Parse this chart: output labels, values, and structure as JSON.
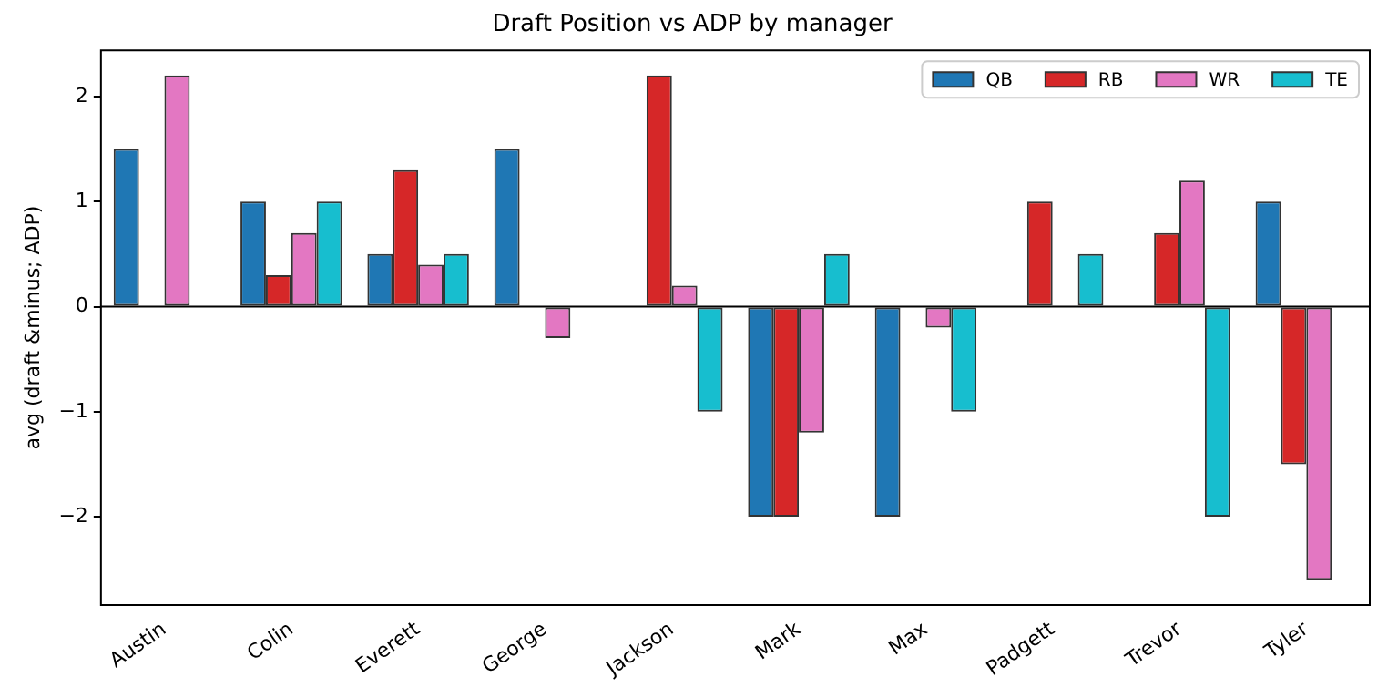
{
  "chart_data": {
    "type": "bar",
    "title": "Draft Position vs ADP by manager",
    "ylabel": "avg (draft &minus; ADP)",
    "categories": [
      "Austin",
      "Colin",
      "Everett",
      "George",
      "Jackson",
      "Mark",
      "Max",
      "Padgett",
      "Trevor",
      "Tyler"
    ],
    "series": [
      {
        "name": "QB",
        "color": "#1f77b4",
        "values": [
          1.5,
          1,
          0.5,
          1.5,
          0,
          -2,
          -2,
          0,
          0,
          1
        ]
      },
      {
        "name": "RB",
        "color": "#d62728",
        "values": [
          0,
          0.3,
          1.3,
          0,
          2.2,
          -2,
          0,
          1,
          0.7,
          -1.5
        ]
      },
      {
        "name": "WR",
        "color": "#e377c2",
        "values": [
          2.2,
          0.7,
          0.4,
          -0.3,
          0.2,
          -1.2,
          -0.2,
          0,
          1.2,
          -2.6
        ]
      },
      {
        "name": "TE",
        "color": "#17becf",
        "values": [
          0,
          1,
          0.5,
          0,
          -1,
          0.5,
          -1,
          0.5,
          -2,
          0
        ]
      }
    ],
    "ylim": [
      -2.84,
      2.44
    ],
    "yticks": [
      -2,
      -1,
      0,
      1,
      2
    ],
    "ref_lines": [
      {
        "axis": "y",
        "value": 0,
        "color": "#000000"
      }
    ],
    "grid": false,
    "legend": "top right"
  }
}
